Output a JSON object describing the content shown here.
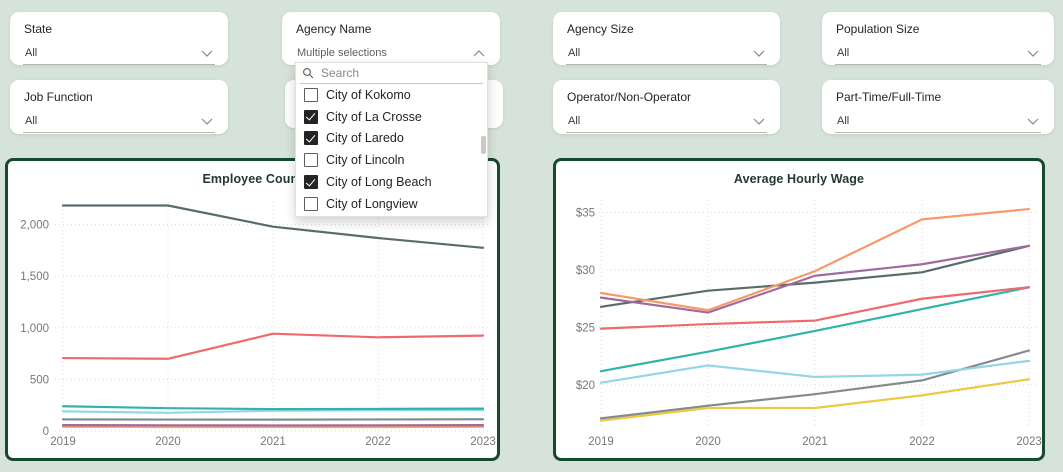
{
  "filters": {
    "items": [
      {
        "label": "State",
        "value": "All"
      },
      {
        "label": "Agency Name",
        "value": "Multiple selections"
      },
      {
        "label": "Agency Size",
        "value": "All"
      },
      {
        "label": "Population Size",
        "value": "All"
      },
      {
        "label": "Job Function",
        "value": "All"
      },
      {
        "label": "Operator/Non-Operator",
        "value": "All"
      },
      {
        "label": "Part-Time/Full-Time",
        "value": "All"
      }
    ]
  },
  "dropdown": {
    "search_placeholder": "Search",
    "items": [
      {
        "label": "City of Kokomo",
        "checked": false
      },
      {
        "label": "City of La Crosse",
        "checked": true
      },
      {
        "label": "City of Laredo",
        "checked": true
      },
      {
        "label": "City of Lincoln",
        "checked": false
      },
      {
        "label": "City of Long Beach",
        "checked": true
      },
      {
        "label": "City of Longview",
        "checked": false
      }
    ],
    "partial_item_visible": true
  },
  "colors": {
    "background": "#d6e3da",
    "panel_border": "#17492d",
    "grid": "#dcdcdc",
    "tick_text": "#7a7876",
    "slate": "#5b6b6d",
    "red": "#f1696c",
    "teal": "#2fb5a8",
    "sky": "#94d5e6",
    "gray": "#828c8e",
    "mauve": "#9d6b9e",
    "orange": "#f79a69",
    "yellow": "#edc843"
  },
  "chart_data": [
    {
      "id": "employee-count",
      "type": "line",
      "title": "Employee Count",
      "xlabel": "",
      "ylabel": "",
      "x": [
        "2019",
        "2020",
        "2021",
        "2022",
        "2023"
      ],
      "y_ticks": [
        {
          "label": "0",
          "value": 0
        },
        {
          "label": "500",
          "value": 500
        },
        {
          "label": "1,000",
          "value": 1000
        },
        {
          "label": "1,500",
          "value": 1500
        },
        {
          "label": "2,000",
          "value": 2000
        }
      ],
      "ylim": [
        0,
        2350
      ],
      "grid": "dotted",
      "legend": "none",
      "series": [
        {
          "color": "#edc843",
          "values": [
            40,
            39,
            38,
            39,
            40
          ]
        },
        {
          "color": "#f79a69",
          "values": [
            46,
            45,
            44,
            45,
            46
          ]
        },
        {
          "color": "#9d6b9e",
          "values": [
            57,
            55,
            54,
            55,
            57
          ]
        },
        {
          "color": "#828c8e",
          "values": [
            113,
            111,
            110,
            112,
            114
          ]
        },
        {
          "color": "#94d5e6",
          "values": [
            190,
            176,
            197,
            201,
            203
          ]
        },
        {
          "color": "#2fb5a8",
          "values": [
            240,
            221,
            212,
            214,
            217
          ]
        },
        {
          "color": "#f1696c",
          "values": [
            707,
            700,
            943,
            908,
            924
          ]
        },
        {
          "color": "#5b6b6d",
          "values": [
            2185,
            2185,
            1980,
            1870,
            1775
          ]
        }
      ]
    },
    {
      "id": "average-hourly-wage",
      "type": "line",
      "title": "Average Hourly Wage",
      "xlabel": "",
      "ylabel": "",
      "x": [
        "2019",
        "2020",
        "2021",
        "2022",
        "2023"
      ],
      "y_ticks": [
        {
          "label": "$20",
          "value": 20
        },
        {
          "label": "$25",
          "value": 25
        },
        {
          "label": "$30",
          "value": 30
        },
        {
          "label": "$35",
          "value": 35
        }
      ],
      "ylim": [
        16,
        36.5
      ],
      "grid": "dotted",
      "legend": "none",
      "series": [
        {
          "color": "#edc843",
          "values": [
            16.9,
            18.0,
            18.0,
            19.1,
            20.5
          ]
        },
        {
          "color": "#828c8e",
          "values": [
            17.1,
            18.2,
            19.2,
            20.4,
            23.0
          ]
        },
        {
          "color": "#94d5e6",
          "values": [
            20.2,
            21.7,
            20.7,
            20.9,
            22.1
          ]
        },
        {
          "color": "#2fb5a8",
          "values": [
            21.2,
            22.9,
            24.7,
            26.6,
            28.5
          ]
        },
        {
          "color": "#f1696c",
          "values": [
            24.9,
            25.3,
            25.6,
            27.5,
            28.5
          ]
        },
        {
          "color": "#5b6b6d",
          "values": [
            26.8,
            28.2,
            28.9,
            29.8,
            32.1
          ]
        },
        {
          "color": "#9d6b9e",
          "values": [
            27.6,
            26.3,
            29.5,
            30.5,
            32.1
          ]
        },
        {
          "color": "#f79a69",
          "values": [
            28.0,
            26.5,
            29.9,
            34.4,
            35.3
          ]
        }
      ]
    }
  ]
}
